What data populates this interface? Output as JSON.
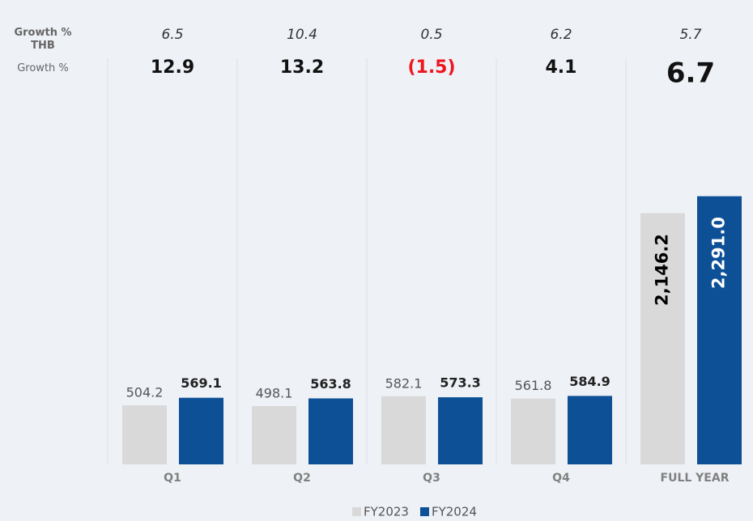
{
  "chart_data": {
    "type": "bar",
    "categories": [
      "Q1",
      "Q2",
      "Q3",
      "Q4",
      "FULL YEAR"
    ],
    "series": [
      {
        "name": "FY2023",
        "color": "#d9d9d9",
        "values": [
          504.2,
          498.1,
          582.1,
          561.8,
          2146.2
        ],
        "value_labels": [
          "504.2",
          "498.1",
          "582.1",
          "561.8",
          "2,146.2"
        ]
      },
      {
        "name": "FY2024",
        "color": "#0d5096",
        "values": [
          569.1,
          563.8,
          573.3,
          584.9,
          2291.0
        ],
        "value_labels": [
          "569.1",
          "563.8",
          "573.3",
          "584.9",
          "2,291.0"
        ]
      }
    ],
    "growth_rows": [
      {
        "name": "Growth % THB",
        "values": [
          6.5,
          10.4,
          0.5,
          6.2,
          5.7
        ]
      },
      {
        "name": "Growth %",
        "values": [
          12.9,
          13.2,
          -1.5,
          4.1,
          6.7
        ],
        "value_labels": [
          "12.9",
          "13.2",
          "(1.5)",
          "4.1",
          "6.7"
        ]
      }
    ],
    "negative_color": "#f0141e",
    "ylim": [
      0,
      3000
    ]
  }
}
